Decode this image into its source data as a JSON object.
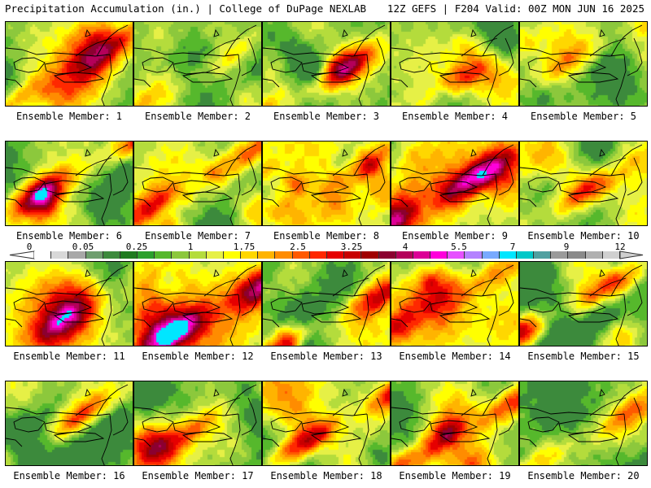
{
  "header": {
    "title": "Precipitation Accumulation (in.) | College of DuPage NEXLAB",
    "run_info": "12Z GEFS | F204 Valid: 00Z MON JUN 16 2025"
  },
  "panels": [
    {
      "label": "Ensemble Member: 1"
    },
    {
      "label": "Ensemble Member: 2"
    },
    {
      "label": "Ensemble Member: 3"
    },
    {
      "label": "Ensemble Member: 4"
    },
    {
      "label": "Ensemble Member: 5"
    },
    {
      "label": "Ensemble Member: 6"
    },
    {
      "label": "Ensemble Member: 7"
    },
    {
      "label": "Ensemble Member: 8"
    },
    {
      "label": "Ensemble Member: 9"
    },
    {
      "label": "Ensemble Member: 10"
    },
    {
      "label": "Ensemble Member: 11"
    },
    {
      "label": "Ensemble Member: 12"
    },
    {
      "label": "Ensemble Member: 13"
    },
    {
      "label": "Ensemble Member: 14"
    },
    {
      "label": "Ensemble Member: 15"
    },
    {
      "label": "Ensemble Member: 16"
    },
    {
      "label": "Ensemble Member: 17"
    },
    {
      "label": "Ensemble Member: 18"
    },
    {
      "label": "Ensemble Member: 19"
    },
    {
      "label": "Ensemble Member: 20"
    }
  ],
  "colorbar": {
    "tick_labels": [
      "0",
      "0.05",
      "0.25",
      "1",
      "1.75",
      "2.5",
      "3.25",
      "4",
      "5.5",
      "7",
      "9",
      "12"
    ],
    "colors": [
      "#ffffff",
      "#d8d8d8",
      "#a8a8a8",
      "#6e9e6e",
      "#3c8a3c",
      "#1e7a1e",
      "#2ca02c",
      "#56b82c",
      "#8cc83c",
      "#b4dc3c",
      "#e6f046",
      "#ffff00",
      "#ffd700",
      "#ffb400",
      "#ff8c00",
      "#ff5a00",
      "#ff2800",
      "#e60000",
      "#c80000",
      "#a00000",
      "#8b0030",
      "#b4005a",
      "#dc0096",
      "#ff00dc",
      "#e650ff",
      "#b482ff",
      "#78aaff",
      "#00e6ff",
      "#00c8c8",
      "#50a0a0",
      "#9a9a9a",
      "#8a8a8a",
      "#b0b0b0",
      "#d0d0d0"
    ]
  },
  "map_palette": [
    "#3c8a3c",
    "#56b82c",
    "#8cc83c",
    "#b4dc3c",
    "#e6f046",
    "#ffff00",
    "#ffd700",
    "#ffb400",
    "#ff8c00",
    "#ff5a00",
    "#ff2800",
    "#e60000",
    "#c80000",
    "#a00000",
    "#8b0030",
    "#b4005a",
    "#dc0096",
    "#ff00dc",
    "#00e6ff"
  ]
}
